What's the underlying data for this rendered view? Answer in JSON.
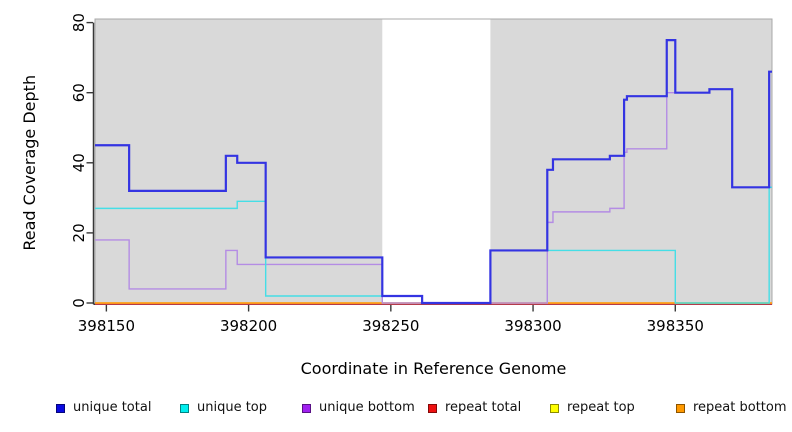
{
  "page": {
    "background": "#ffffff"
  },
  "axes": {
    "x_title": "Coordinate in Reference Genome",
    "y_title": "Read Coverage Depth",
    "x_ticks": [
      398150,
      398200,
      398250,
      398300,
      398350
    ],
    "y_ticks": [
      0,
      20,
      40,
      60,
      80
    ]
  },
  "chart_data": {
    "type": "line",
    "step": true,
    "title": "",
    "xlabel": "Coordinate in Reference Genome",
    "ylabel": "Read Coverage Depth",
    "xlim": [
      398146,
      398384
    ],
    "ylim": [
      0,
      80
    ],
    "grid": false,
    "legend_position": "bottom",
    "background_shading": {
      "color": "#d9d9d9",
      "regions": [
        [
          398146,
          398247
        ],
        [
          398285,
          398384
        ]
      ]
    },
    "draw_order": [
      3,
      4,
      5,
      2,
      1,
      0
    ],
    "series": [
      {
        "key": "unique-total",
        "name": "unique total",
        "line_color": "#3434e2",
        "legend_color": "#0a0ae0",
        "width": 2.2,
        "steps": [
          [
            398146,
            45
          ],
          [
            398158,
            32
          ],
          [
            398192,
            42
          ],
          [
            398196,
            40
          ],
          [
            398206,
            13
          ],
          [
            398247,
            2
          ],
          [
            398261,
            0
          ],
          [
            398285,
            15
          ],
          [
            398305,
            38
          ],
          [
            398307,
            41
          ],
          [
            398327,
            42
          ],
          [
            398332,
            58
          ],
          [
            398333,
            59
          ],
          [
            398347,
            75
          ],
          [
            398350,
            60
          ],
          [
            398362,
            61
          ],
          [
            398370,
            33
          ],
          [
            398383,
            66
          ]
        ]
      },
      {
        "key": "unique-top",
        "name": "unique top",
        "line_color": "#45dee6",
        "legend_color": "#00eeee",
        "width": 1.4,
        "steps": [
          [
            398146,
            27
          ],
          [
            398196,
            29
          ],
          [
            398206,
            2
          ],
          [
            398261,
            0
          ],
          [
            398285,
            15
          ],
          [
            398350,
            0
          ],
          [
            398383,
            33
          ]
        ]
      },
      {
        "key": "unique-bottom",
        "name": "unique bottom",
        "line_color": "#b48ce4",
        "legend_color": "#a020f0",
        "width": 1.4,
        "steps": [
          [
            398146,
            18
          ],
          [
            398158,
            4
          ],
          [
            398192,
            15
          ],
          [
            398196,
            11
          ],
          [
            398247,
            0
          ],
          [
            398305,
            23
          ],
          [
            398307,
            26
          ],
          [
            398327,
            27
          ],
          [
            398332,
            43
          ],
          [
            398333,
            44
          ],
          [
            398347,
            60
          ],
          [
            398362,
            61
          ],
          [
            398370,
            33
          ]
        ]
      },
      {
        "key": "repeat-total",
        "name": "repeat total",
        "line_color": "#dd3a50",
        "legend_color": "#ee1111",
        "width": 1.4,
        "steps": [
          [
            398146,
            0
          ]
        ]
      },
      {
        "key": "repeat-top",
        "name": "repeat top",
        "line_color": "#ffee00",
        "legend_color": "#ffff00",
        "width": 1.4,
        "steps": [
          [
            398146,
            0
          ]
        ]
      },
      {
        "key": "repeat-bottom",
        "name": "repeat bottom",
        "line_color": "#ff9419",
        "legend_color": "#ff9900",
        "width": 1.4,
        "steps": [
          [
            398146,
            0
          ]
        ]
      }
    ]
  },
  "style": {
    "plot_bg": "#ffffff",
    "box_color": "#a8a8a8",
    "axis_color": "#383838",
    "text_color": "#000000"
  }
}
